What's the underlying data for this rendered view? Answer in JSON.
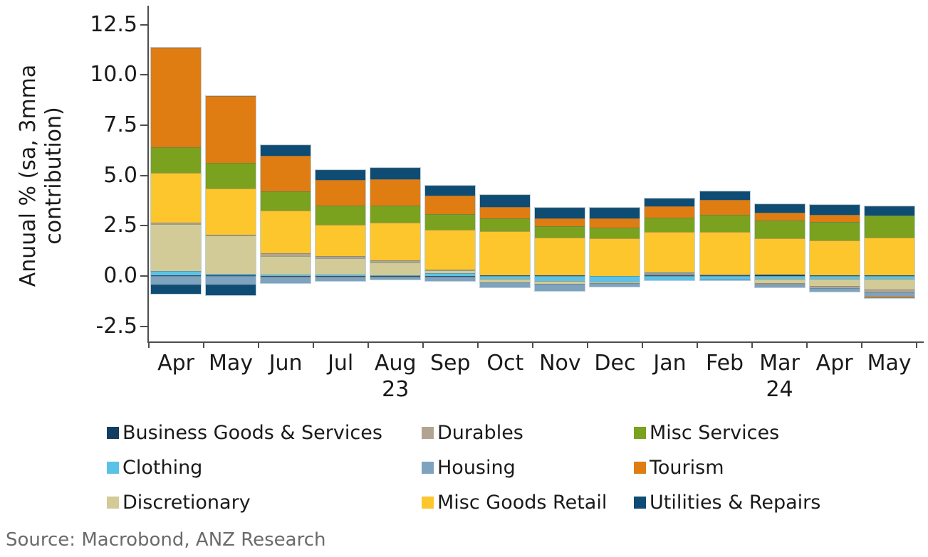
{
  "source": "Source: Macrobond, ANZ Research",
  "chart_data": {
    "type": "bar",
    "stacked": true,
    "title": "",
    "ylabel_line1": "Anuual % (sa, 3mma",
    "ylabel_line2": "contribution)",
    "xlabel": "",
    "ylim": [
      -3.4,
      13.3
    ],
    "yticks": [
      12.5,
      10.0,
      7.5,
      5.0,
      2.5,
      0.0,
      -2.5
    ],
    "grid": false,
    "legend_position": "bottom",
    "categories": [
      "Apr",
      "May",
      "Jun",
      "Jul",
      "Aug",
      "Sep",
      "Oct",
      "Nov",
      "Dec",
      "Jan",
      "Feb",
      "Mar",
      "Apr",
      "May"
    ],
    "year_labels": [
      {
        "text": "23",
        "month_index": 4
      },
      {
        "text": "24",
        "month_index": 11
      }
    ],
    "series": [
      {
        "name": "Business Goods & Services",
        "color": "#123f61",
        "values": [
          0.03,
          0.02,
          -0.05,
          -0.05,
          -0.04,
          -0.02,
          0.04,
          0.04,
          0.0,
          0.05,
          0.05,
          0.08,
          0.05,
          0.05
        ]
      },
      {
        "name": "Clothing",
        "color": "#5bc2e7",
        "values": [
          0.22,
          0.09,
          0.08,
          0.07,
          0.05,
          0.15,
          -0.15,
          -0.24,
          -0.27,
          -0.22,
          -0.18,
          -0.14,
          -0.15,
          -0.14
        ]
      },
      {
        "name": "Discretionary",
        "color": "#d2cb97",
        "values": [
          2.33,
          1.9,
          0.92,
          0.82,
          0.62,
          0.12,
          -0.16,
          -0.15,
          -0.07,
          0.0,
          0.0,
          -0.21,
          -0.35,
          -0.54
        ]
      },
      {
        "name": "Durables",
        "color": "#b2a492",
        "values": [
          0.07,
          0.04,
          0.13,
          0.1,
          0.11,
          0.04,
          0.0,
          0.0,
          0.0,
          0.04,
          0.02,
          -0.07,
          -0.09,
          -0.14
        ]
      },
      {
        "name": "Housing",
        "color": "#7da3bf",
        "values": [
          -0.42,
          -0.42,
          -0.3,
          -0.21,
          -0.14,
          -0.22,
          -0.26,
          -0.36,
          -0.2,
          0.08,
          -0.05,
          -0.16,
          -0.19,
          -0.19
        ]
      },
      {
        "name": "Misc Goods Retail",
        "color": "#fdc62d",
        "values": [
          2.47,
          2.3,
          2.12,
          1.55,
          1.87,
          2.0,
          2.19,
          1.86,
          1.87,
          2.02,
          2.12,
          1.81,
          1.72,
          1.86
        ]
      },
      {
        "name": "Misc Services",
        "color": "#7aa21e",
        "values": [
          1.28,
          1.27,
          0.95,
          0.95,
          0.85,
          0.78,
          0.64,
          0.56,
          0.53,
          0.71,
          0.85,
          0.88,
          0.92,
          1.09
        ]
      },
      {
        "name": "Tourism",
        "color": "#df7c12",
        "values": [
          4.94,
          3.32,
          1.76,
          1.27,
          1.31,
          0.9,
          0.57,
          0.39,
          0.45,
          0.56,
          0.74,
          0.36,
          0.35,
          -0.1
        ]
      },
      {
        "name": "Utilities & Repairs",
        "color": "#0f4c74",
        "values": [
          -0.47,
          -0.53,
          0.54,
          0.51,
          0.56,
          0.51,
          0.58,
          0.54,
          0.54,
          0.4,
          0.42,
          0.45,
          0.49,
          0.46
        ]
      }
    ],
    "legend_columns": [
      [
        "Business Goods & Services",
        "Clothing",
        "Discretionary"
      ],
      [
        "Durables",
        "Housing",
        "Misc Goods Retail"
      ],
      [
        "Misc Services",
        "Tourism",
        "Utilities & Repairs"
      ]
    ]
  }
}
